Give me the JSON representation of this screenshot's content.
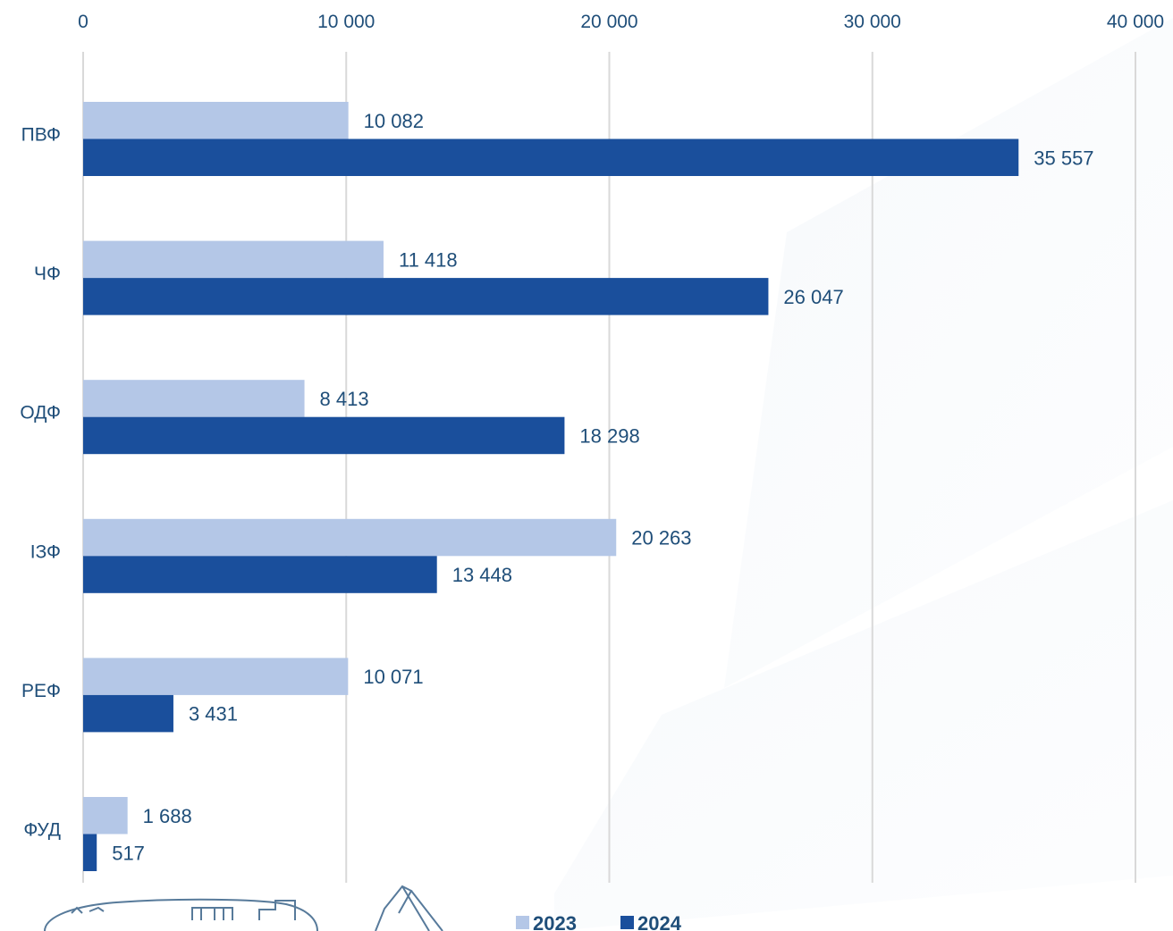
{
  "chart_data": {
    "type": "bar",
    "orientation": "horizontal",
    "categories": [
      "ПВФ",
      "ЧФ",
      "ОДФ",
      "ІЗФ",
      "РЕФ",
      "ФУД"
    ],
    "series": [
      {
        "name": "2023",
        "values": [
          10082,
          11418,
          8413,
          20263,
          10071,
          1688
        ],
        "labels": [
          "10 082",
          "11 418",
          "8 413",
          "20 263",
          "10 071",
          "1 688"
        ],
        "color": "#b4c7e7"
      },
      {
        "name": "2024",
        "values": [
          35557,
          26047,
          18298,
          13448,
          3431,
          517
        ],
        "labels": [
          "35 557",
          "26 047",
          "18 298",
          "13 448",
          "3 431",
          "517"
        ],
        "color": "#1a4f9c"
      }
    ],
    "xlim": [
      0,
      40000
    ],
    "xticks": [
      0,
      10000,
      20000,
      30000,
      40000
    ],
    "xtick_labels": [
      "0",
      "10 000",
      "20 000",
      "30 000",
      "40 000"
    ],
    "axis_position": "top",
    "grid": true,
    "grid_color": "#d9d9d9",
    "label_color": "#1f4e79",
    "legend_position": "bottom",
    "title": "",
    "xlabel": "",
    "ylabel": ""
  }
}
